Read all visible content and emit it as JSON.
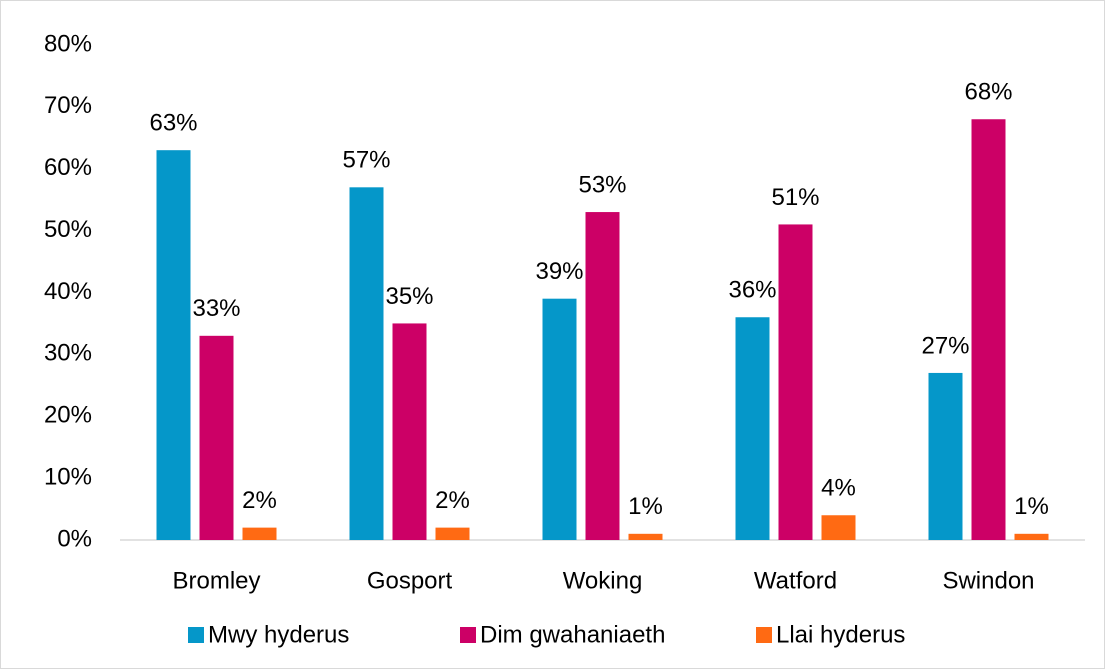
{
  "chart_data": {
    "type": "bar",
    "categories": [
      "Bromley",
      "Gosport",
      "Woking",
      "Watford",
      "Swindon"
    ],
    "series": [
      {
        "name": "Mwy hyderus",
        "color": "#0597c9",
        "values": [
          63,
          57,
          39,
          36,
          27
        ],
        "value_labels": [
          "63%",
          "57%",
          "39%",
          "36%",
          "27%"
        ]
      },
      {
        "name": "Dim gwahaniaeth",
        "color": "#cc0066",
        "values": [
          33,
          35,
          53,
          51,
          68
        ],
        "value_labels": [
          "33%",
          "35%",
          "53%",
          "51%",
          "68%"
        ]
      },
      {
        "name": "Llai hyderus",
        "color": "#ff6a13",
        "values": [
          2,
          2,
          1,
          4,
          1
        ],
        "value_labels": [
          "2%",
          "2%",
          "1%",
          "4%",
          "1%"
        ]
      }
    ],
    "ylim": [
      0,
      80
    ],
    "yticks": [
      {
        "value": 0,
        "label": "0%"
      },
      {
        "value": 10,
        "label": "10%"
      },
      {
        "value": 20,
        "label": "20%"
      },
      {
        "value": 30,
        "label": "30%"
      },
      {
        "value": 40,
        "label": "40%"
      },
      {
        "value": 50,
        "label": "50%"
      },
      {
        "value": 60,
        "label": "60%"
      },
      {
        "value": 70,
        "label": "70%"
      },
      {
        "value": 80,
        "label": "80%"
      }
    ],
    "grid": false,
    "legend": "bottom"
  }
}
